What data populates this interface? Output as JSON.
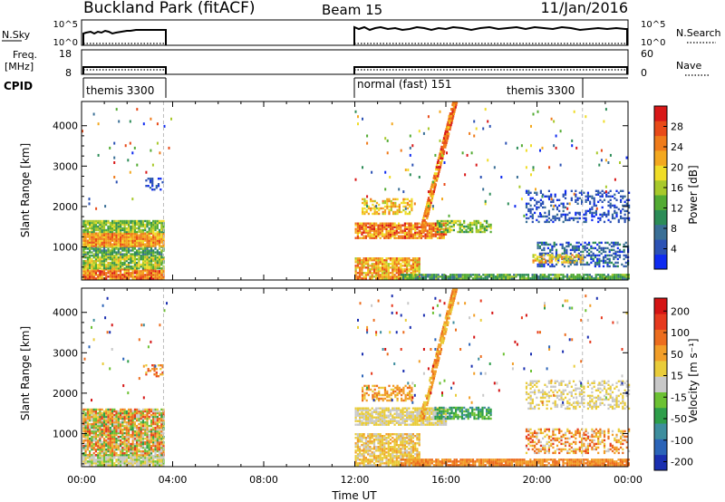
{
  "header": {
    "station": "Buckland Park (fitACF)",
    "beam": "Beam 15",
    "date": "11/Jan/2016"
  },
  "strip_panels": {
    "nsky": {
      "left_label": "N.Sky",
      "right_label": "N.Search",
      "left_ticks": [
        "10^5",
        "10^0"
      ],
      "right_ticks": [
        "10^5",
        "10^0"
      ]
    },
    "freq": {
      "left_label_1": "Freq.",
      "left_label_2": "[MHz]",
      "right_label": "Nave",
      "left_ticks": [
        "18",
        "8"
      ],
      "right_ticks": [
        "60",
        "0"
      ]
    },
    "cpid": {
      "label": "CPID",
      "segments": [
        {
          "label": "themis 3300",
          "start_h": 0.0
        },
        {
          "label": "normal (fast) 151",
          "start_h": 12.0
        },
        {
          "label": "themis 3300",
          "start_h": 22.0
        }
      ]
    }
  },
  "chart_data": [
    {
      "type": "heatmap",
      "ylabel": "Slant Range [km]",
      "yticks": [
        "1000",
        "2000",
        "3000",
        "4000"
      ],
      "ylim": [
        180,
        4600
      ],
      "colorbar": {
        "label": "Power [dB]",
        "ticks": [
          "4",
          "8",
          "12",
          "16",
          "20",
          "24",
          "28"
        ],
        "colors": [
          "#0f2bf0",
          "#2c52b4",
          "#3a6f96",
          "#2c8c57",
          "#53ab33",
          "#a8c92b",
          "#f0dd28",
          "#f3a81f",
          "#ef7b1a",
          "#e84a18",
          "#d81818"
        ]
      }
    },
    {
      "type": "heatmap",
      "ylabel": "Slant Range [km]",
      "yticks": [
        "1000",
        "2000",
        "3000",
        "4000"
      ],
      "ylim": [
        180,
        4600
      ],
      "colorbar": {
        "label": "Velocity [m s⁻¹]",
        "ticks": [
          "200",
          "100",
          "50",
          "15",
          "-15",
          "-50",
          "-100",
          "-200"
        ],
        "colors": [
          "#1a2fb0",
          "#2b64b8",
          "#3e8e9e",
          "#2e9e4a",
          "#6cc133",
          "#c8c8c8",
          "#e9cc3a",
          "#f29e28",
          "#ec6d1e",
          "#e63a1e",
          "#d41414"
        ]
      }
    }
  ],
  "time_axis": {
    "xlabel": "Time UT",
    "xlim": [
      0,
      24
    ],
    "ticks": [
      "00:00",
      "04:00",
      "08:00",
      "12:00",
      "16:00",
      "20:00",
      "00:00"
    ]
  }
}
